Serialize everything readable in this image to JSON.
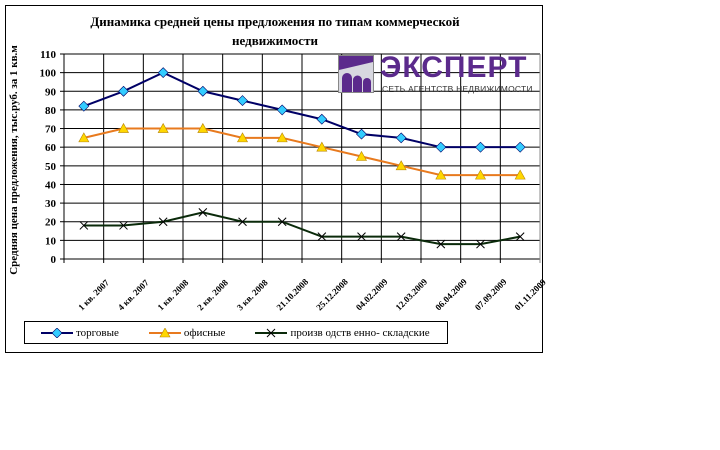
{
  "chart_data": {
    "type": "line",
    "title": "Динамика средней цены предложения по типам коммерческой недвижимости",
    "xlabel": "",
    "ylabel": "Средняя цена предложения, тыс.руб. за 1 кв.м",
    "ylim": [
      0,
      110
    ],
    "yticks": [
      0,
      10,
      20,
      30,
      40,
      50,
      60,
      70,
      80,
      90,
      100,
      110
    ],
    "grid": true,
    "legend_position": "bottom",
    "categories": [
      "1 кв. 2007",
      "4 кв. 2007",
      "1 кв. 2008",
      "2 кв. 2008",
      "3 кв. 2008",
      "21.10.2008",
      "25.12.2008",
      "04.02.2009",
      "12.03.2009",
      "06.04.2009",
      "07.09.2009",
      "01.11.2009"
    ],
    "series": [
      {
        "name": "торговые",
        "color": "#000066",
        "marker": "diamond",
        "marker_color": "#33ccff",
        "values": [
          82,
          90,
          100,
          90,
          85,
          80,
          75,
          67,
          65,
          60,
          60,
          60
        ]
      },
      {
        "name": "офисные",
        "color": "#e87a1e",
        "marker": "triangle",
        "marker_color": "#ffd700",
        "values": [
          65,
          70,
          70,
          70,
          65,
          65,
          60,
          55,
          50,
          45,
          45,
          45
        ]
      },
      {
        "name": "производственно-складские",
        "color": "#0a2a0a",
        "marker": "x",
        "marker_color": "#000000",
        "values": [
          18,
          18,
          20,
          25,
          20,
          20,
          12,
          12,
          12,
          8,
          8,
          12
        ]
      }
    ]
  },
  "title_line1": "Динамика средней цены предложения по типам коммерческой",
  "title_line2": "недвижимости",
  "legend": {
    "item1": "торговые",
    "item2": "офисные",
    "item3": "произв одств енно- складские"
  },
  "logo": {
    "name": "ЭКСПЕРТ",
    "subtitle": "СЕТЬ АГЕНТСТВ НЕДВИЖИМОСТИ",
    "color": "#5b2a8c"
  }
}
